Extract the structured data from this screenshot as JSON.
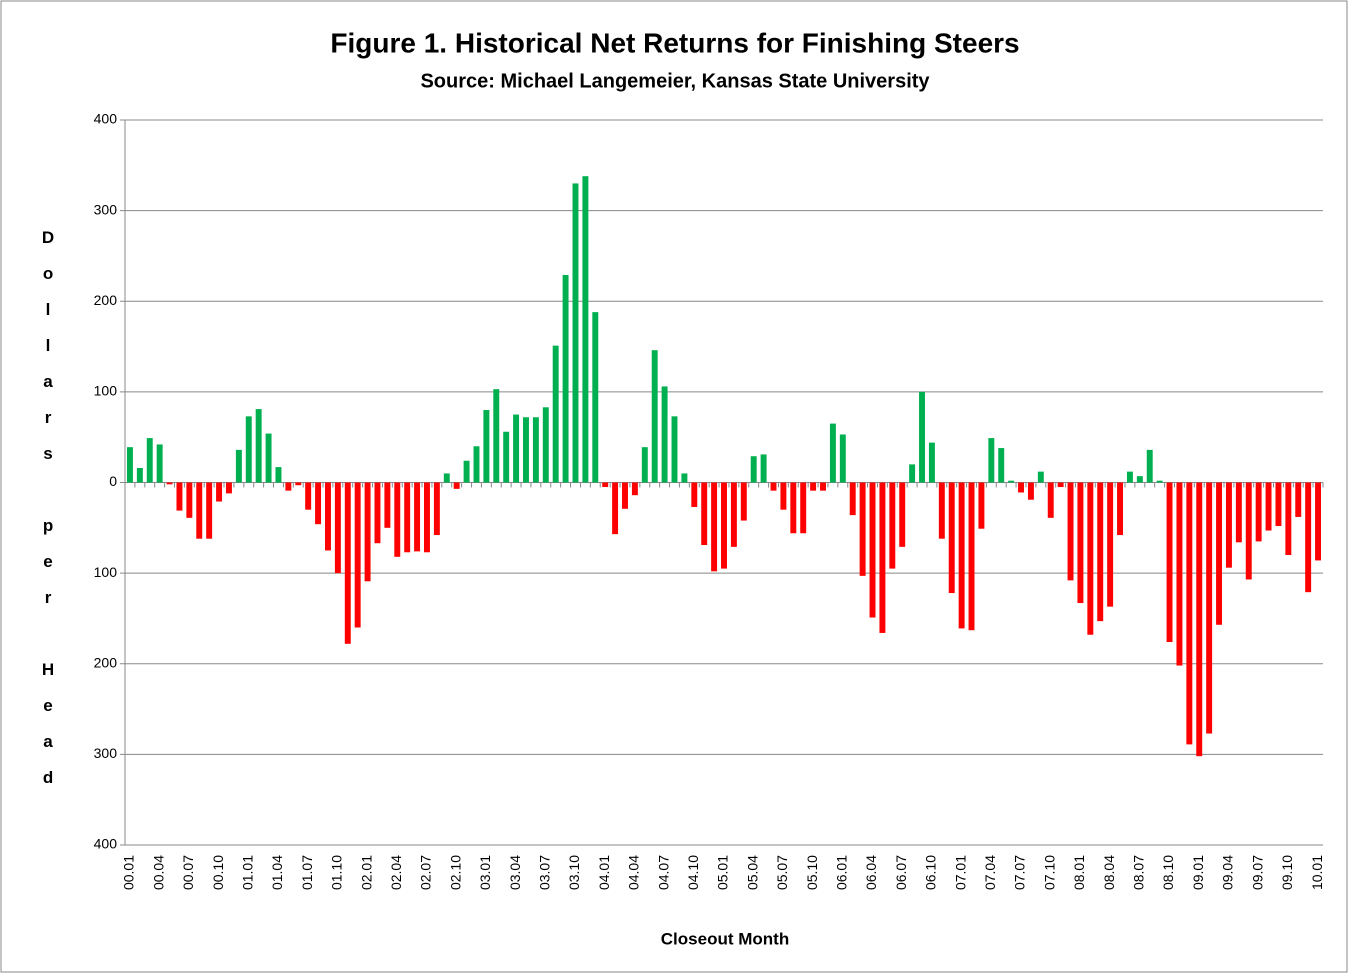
{
  "chart_data": {
    "type": "bar",
    "title": "Figure 1.  Historical Net Returns for Finishing Steers",
    "subtitle": "Source:  Michael Langemeier, Kansas State University",
    "xlabel": "Closeout Month",
    "ylabel": "Dollars per Head",
    "categories": [
      "00.01",
      null,
      null,
      "00.04",
      null,
      null,
      "00.07",
      null,
      null,
      "00.10",
      null,
      null,
      "01.01",
      null,
      null,
      "01.04",
      null,
      null,
      "01.07",
      null,
      null,
      "01.10",
      null,
      null,
      "02.01",
      null,
      null,
      "02.04",
      null,
      null,
      "02.07",
      null,
      null,
      "02.10",
      null,
      null,
      "03.01",
      null,
      null,
      "03.04",
      null,
      null,
      "03.07",
      null,
      null,
      "03.10",
      null,
      null,
      "04.01",
      null,
      null,
      "04.04",
      null,
      null,
      "04.07",
      null,
      null,
      "04.10",
      null,
      null,
      "05.01",
      null,
      null,
      "05.04",
      null,
      null,
      "05.07",
      null,
      null,
      "05.10",
      null,
      null,
      "06.01",
      null,
      null,
      "06.04",
      null,
      null,
      "06.07",
      null,
      null,
      "06.10",
      null,
      null,
      "07.01",
      null,
      null,
      "07.04",
      null,
      null,
      "07.07",
      null,
      null,
      "07.10",
      null,
      null,
      "08.01",
      null,
      null,
      "08.04",
      null,
      null,
      "08.07",
      null,
      null,
      "08.10",
      null,
      null,
      "09.01",
      null,
      null,
      "09.04",
      null,
      null,
      "09.07",
      null,
      null,
      "09.10",
      null,
      null,
      "10.01"
    ],
    "values": [
      39,
      16,
      49,
      42,
      -2,
      -31,
      -39,
      -62,
      -62,
      -21,
      -12,
      36,
      73,
      81,
      54,
      17,
      -9,
      -3,
      -30,
      -46,
      -75,
      -100,
      -178,
      -160,
      -109,
      -67,
      -50,
      -82,
      -77,
      -76,
      -77,
      -58,
      10,
      -7,
      24,
      40,
      80,
      103,
      56,
      75,
      72,
      72,
      83,
      151,
      229,
      330,
      338,
      188,
      -5,
      -57,
      -29,
      -14,
      39,
      146,
      106,
      73,
      10,
      -27,
      -69,
      -98,
      -95,
      -71,
      -42,
      29,
      31,
      -9,
      -30,
      -56,
      -56,
      -9,
      -9,
      65,
      53,
      -36,
      -103,
      -149,
      -166,
      -95,
      -71,
      20,
      100,
      44,
      -62,
      -122,
      -161,
      -163,
      -51,
      49,
      38,
      2,
      -11,
      -19,
      12,
      -39,
      -5,
      -108,
      -133,
      -168,
      -153,
      -137,
      -58,
      12,
      7,
      36,
      2,
      -176,
      -202,
      -289,
      -302,
      -277,
      -157,
      -94,
      -66,
      -107,
      -65,
      -53,
      -48,
      -80,
      -38,
      -121,
      -86
    ],
    "positive_color": "#00b050",
    "negative_color": "#ff0000",
    "negative_tick_color": "#ff0000",
    "ylim": [
      -400,
      400
    ],
    "yticks": [
      {
        "value": -400,
        "label": "400"
      },
      {
        "value": -300,
        "label": "300"
      },
      {
        "value": -200,
        "label": "200"
      },
      {
        "value": -100,
        "label": "100"
      },
      0,
      100,
      200,
      300,
      400
    ],
    "grid": true
  }
}
